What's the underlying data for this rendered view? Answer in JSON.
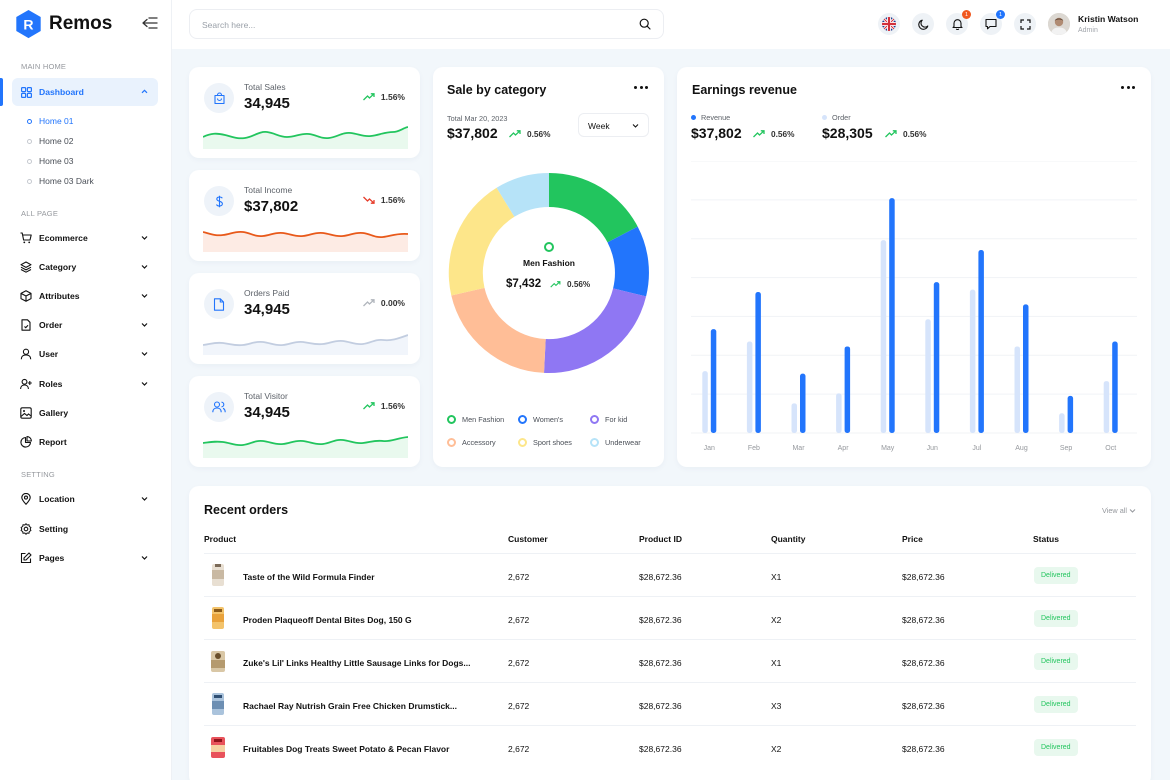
{
  "app": {
    "name": "Remos"
  },
  "sidebar": {
    "sections": {
      "main": "MAIN HOME",
      "all": "ALL PAGE",
      "setting": "SETTING"
    },
    "dashboard": "Dashboard",
    "sub_items": [
      "Home 01",
      "Home 02",
      "Home 03",
      "Home 03 Dark"
    ],
    "items": [
      {
        "label": "Ecommerce",
        "icon": "cart-icon"
      },
      {
        "label": "Category",
        "icon": "layers-icon"
      },
      {
        "label": "Attributes",
        "icon": "cube-icon"
      },
      {
        "label": "Order",
        "icon": "order-icon"
      },
      {
        "label": "User",
        "icon": "user-icon"
      },
      {
        "label": "Roles",
        "icon": "user-plus-icon"
      },
      {
        "label": "Gallery",
        "icon": "image-icon"
      },
      {
        "label": "Report",
        "icon": "pie-icon"
      }
    ],
    "setting_items": [
      {
        "label": "Location",
        "icon": "location-icon"
      },
      {
        "label": "Setting",
        "icon": "gear-icon"
      },
      {
        "label": "Pages",
        "icon": "edit-icon"
      }
    ]
  },
  "header": {
    "search_placeholder": "Search here...",
    "notifications_count": "1",
    "messages_count": "1",
    "user_name": "Kristin Watson",
    "user_role": "Admin"
  },
  "stats": [
    {
      "label": "Total Sales",
      "value": "34,945",
      "change": "1.56%",
      "direction": "up",
      "color": "#22c55e"
    },
    {
      "label": "Total Income",
      "value": "$37,802",
      "change": "1.56%",
      "direction": "down",
      "color": "#f0581f"
    },
    {
      "label": "Orders Paid",
      "value": "34,945",
      "change": "0.00%",
      "direction": "flat",
      "color": "#b8c7e0"
    },
    {
      "label": "Total Visitor",
      "value": "34,945",
      "change": "1.56%",
      "direction": "up",
      "color": "#22c55e"
    }
  ],
  "category": {
    "title": "Sale by category",
    "date": "Total Mar 20, 2023",
    "total": "$37,802",
    "change": "0.56%",
    "period": "Week",
    "center_label": "Men Fashion",
    "center_value": "$7,432",
    "center_change": "0.56%",
    "legend": [
      {
        "label": "Men Fashion",
        "color": "#22c55e"
      },
      {
        "label": "Women's",
        "color": "#2275fc"
      },
      {
        "label": "For kid",
        "color": "#8f77f3"
      },
      {
        "label": "Accessory",
        "color": "#ffbe97"
      },
      {
        "label": "Sport shoes",
        "color": "#fde68a"
      },
      {
        "label": "Underwear",
        "color": "#b6e3f8"
      }
    ]
  },
  "earnings": {
    "title": "Earnings revenue",
    "revenue_label": "Revenue",
    "revenue_value": "$37,802",
    "revenue_change": "0.56%",
    "order_label": "Order",
    "order_value": "$28,305",
    "order_change": "0.56%"
  },
  "chart_data": {
    "type": "bar",
    "categories": [
      "Jan",
      "Feb",
      "Mar",
      "Apr",
      "May",
      "Jun",
      "Jul",
      "Aug",
      "Sep",
      "Oct"
    ],
    "series": [
      {
        "name": "Order",
        "color": "#d6e4fb",
        "values": [
          25,
          37,
          12,
          16,
          78,
          46,
          58,
          35,
          8,
          21
        ]
      },
      {
        "name": "Revenue",
        "color": "#2275fc",
        "values": [
          42,
          57,
          24,
          35,
          95,
          61,
          74,
          52,
          15,
          37
        ]
      }
    ],
    "ylim": [
      0,
      110
    ],
    "grid": true
  },
  "orders": {
    "title": "Recent orders",
    "view_all": "View all",
    "headers": [
      "Product",
      "Customer",
      "Product ID",
      "Quantity",
      "Price",
      "Status"
    ],
    "rows": [
      {
        "product": "Taste of the Wild Formula Finder",
        "customer": "2,672",
        "id": "$28,672.36",
        "qty": "X1",
        "price": "$28,672.36",
        "status": "Delivered",
        "color": "#c9b9a3"
      },
      {
        "product": "Proden Plaqueoff Dental Bites Dog, 150 G",
        "customer": "2,672",
        "id": "$28,672.36",
        "qty": "X2",
        "price": "$28,672.36",
        "status": "Delivered",
        "color": "#e9a23b"
      },
      {
        "product": "Zuke's Lil' Links Healthy Little Sausage Links for Dogs...",
        "customer": "2,672",
        "id": "$28,672.36",
        "qty": "X1",
        "price": "$28,672.36",
        "status": "Delivered",
        "color": "#b59a6e"
      },
      {
        "product": "Rachael Ray Nutrish Grain Free Chicken Drumstick...",
        "customer": "2,672",
        "id": "$28,672.36",
        "qty": "X3",
        "price": "$28,672.36",
        "status": "Delivered",
        "color": "#6d8fb3"
      },
      {
        "product": "Fruitables Dog Treats Sweet Potato & Pecan Flavor",
        "customer": "2,672",
        "id": "$28,672.36",
        "qty": "X2",
        "price": "$28,672.36",
        "status": "Delivered",
        "color": "#d8303a"
      }
    ]
  }
}
